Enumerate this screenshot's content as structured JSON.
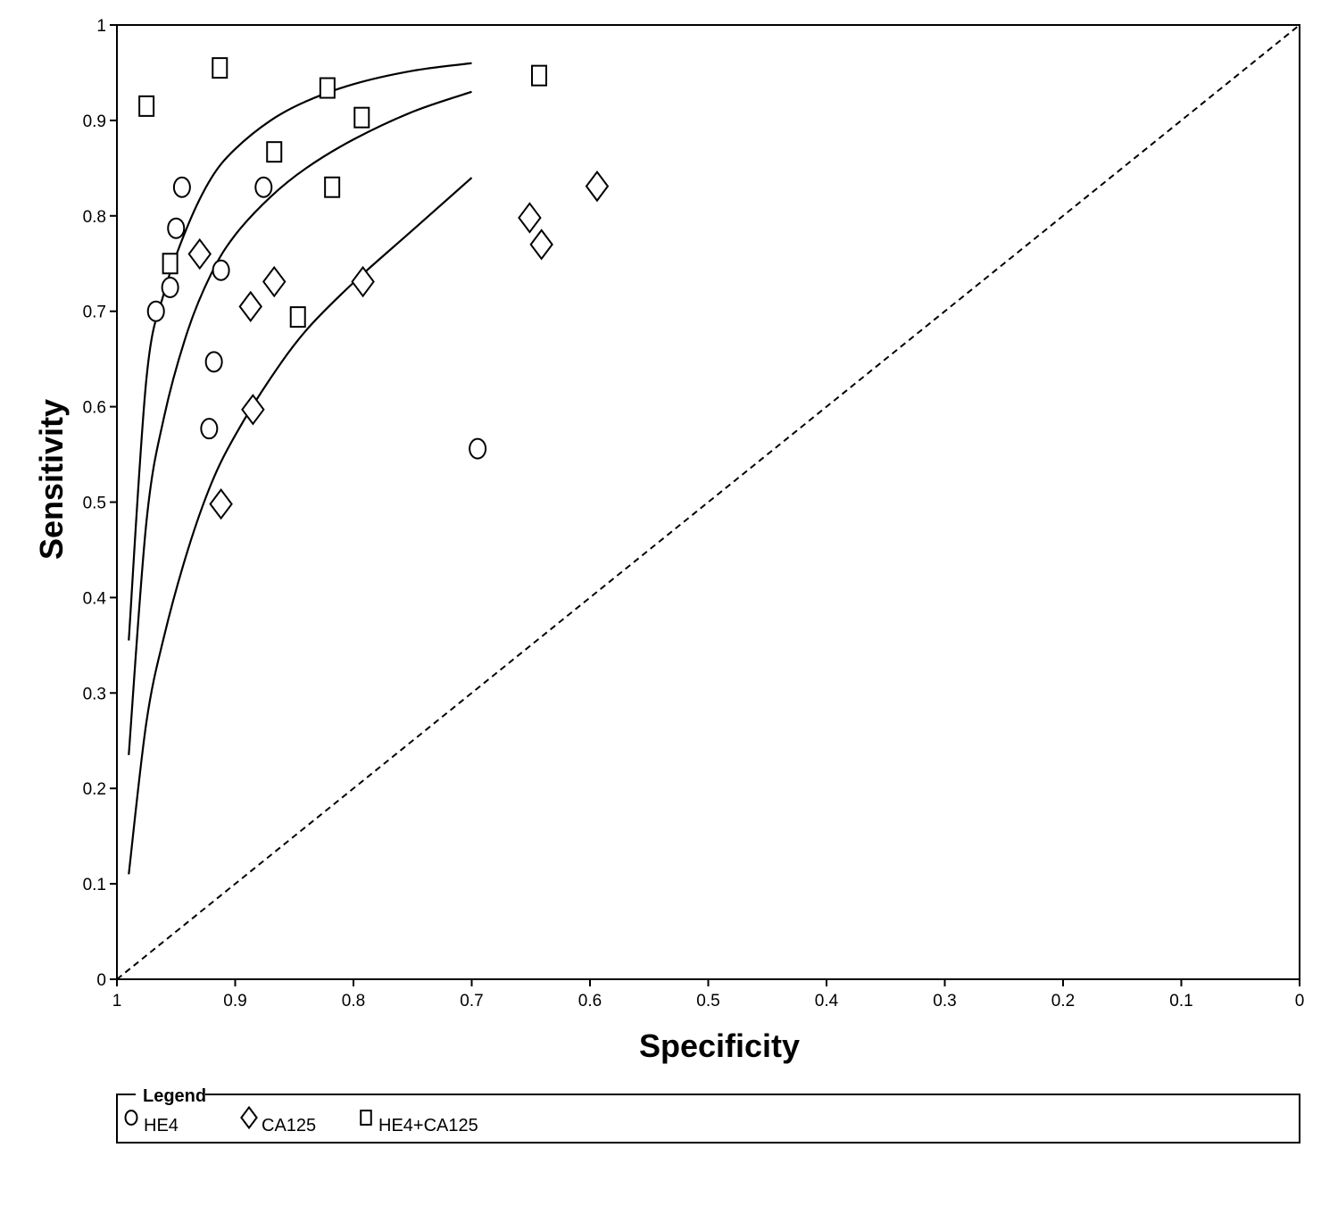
{
  "chart_data": {
    "type": "scatter",
    "title": "",
    "xlabel": "Specificity",
    "ylabel": "Sensitivity",
    "xlim": [
      1,
      0
    ],
    "ylim": [
      0,
      1
    ],
    "x_reversed": true,
    "x_ticks": [
      "1",
      "0.9",
      "0.8",
      "0.7",
      "0.6",
      "0.5",
      "0.4",
      "0.3",
      "0.2",
      "0.1",
      "0"
    ],
    "y_ticks": [
      "0",
      "0.1",
      "0.2",
      "0.3",
      "0.4",
      "0.5",
      "0.6",
      "0.7",
      "0.8",
      "0.9",
      "1"
    ],
    "grid": false,
    "reference_line": {
      "style": "dashed",
      "from": [
        1,
        0
      ],
      "to": [
        0,
        1
      ]
    },
    "series": [
      {
        "name": "HE4",
        "marker": "circle",
        "points": [
          [
            0.967,
            0.7
          ],
          [
            0.955,
            0.725
          ],
          [
            0.95,
            0.787
          ],
          [
            0.945,
            0.83
          ],
          [
            0.912,
            0.743
          ],
          [
            0.918,
            0.647
          ],
          [
            0.922,
            0.577
          ],
          [
            0.876,
            0.83
          ],
          [
            0.695,
            0.556
          ]
        ]
      },
      {
        "name": "CA125",
        "marker": "diamond",
        "points": [
          [
            0.93,
            0.76
          ],
          [
            0.887,
            0.705
          ],
          [
            0.867,
            0.731
          ],
          [
            0.885,
            0.597
          ],
          [
            0.912,
            0.498
          ],
          [
            0.792,
            0.731
          ],
          [
            0.651,
            0.798
          ],
          [
            0.641,
            0.77
          ],
          [
            0.594,
            0.831
          ]
        ]
      },
      {
        "name": "HE4+CA125",
        "marker": "square",
        "points": [
          [
            0.975,
            0.915
          ],
          [
            0.913,
            0.955
          ],
          [
            0.955,
            0.75
          ],
          [
            0.867,
            0.867
          ],
          [
            0.822,
            0.934
          ],
          [
            0.793,
            0.903
          ],
          [
            0.818,
            0.83
          ],
          [
            0.847,
            0.694
          ],
          [
            0.643,
            0.947
          ]
        ]
      }
    ],
    "curves": [
      {
        "style": "solid",
        "points": [
          [
            0.99,
            0.355
          ],
          [
            0.975,
            0.63
          ],
          [
            0.96,
            0.72
          ],
          [
            0.94,
            0.79
          ],
          [
            0.92,
            0.84
          ],
          [
            0.9,
            0.87
          ],
          [
            0.87,
            0.9
          ],
          [
            0.84,
            0.92
          ],
          [
            0.8,
            0.938
          ],
          [
            0.75,
            0.952
          ],
          [
            0.7,
            0.96
          ]
        ]
      },
      {
        "style": "solid",
        "points": [
          [
            0.99,
            0.235
          ],
          [
            0.975,
            0.48
          ],
          [
            0.96,
            0.59
          ],
          [
            0.94,
            0.68
          ],
          [
            0.92,
            0.74
          ],
          [
            0.9,
            0.78
          ],
          [
            0.87,
            0.82
          ],
          [
            0.84,
            0.85
          ],
          [
            0.8,
            0.88
          ],
          [
            0.75,
            0.909
          ],
          [
            0.7,
            0.93
          ]
        ]
      },
      {
        "style": "solid",
        "points": [
          [
            0.99,
            0.11
          ],
          [
            0.975,
            0.27
          ],
          [
            0.96,
            0.36
          ],
          [
            0.94,
            0.45
          ],
          [
            0.92,
            0.52
          ],
          [
            0.9,
            0.57
          ],
          [
            0.87,
            0.63
          ],
          [
            0.84,
            0.68
          ],
          [
            0.8,
            0.73
          ],
          [
            0.75,
            0.785
          ],
          [
            0.7,
            0.84
          ]
        ]
      }
    ],
    "legend": {
      "title": "Legend",
      "position": "bottom",
      "entries": [
        "HE4",
        "CA125",
        "HE4+CA125"
      ]
    }
  }
}
